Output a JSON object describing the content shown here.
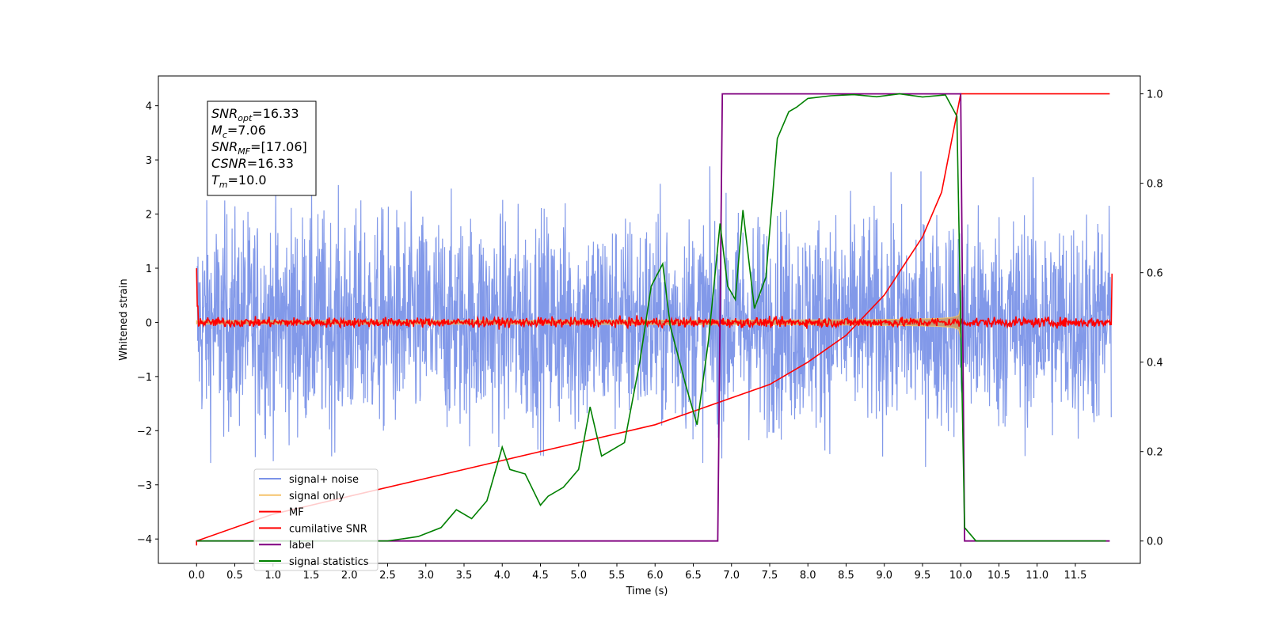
{
  "chart_data": {
    "type": "line",
    "xlabel": "Time (s)",
    "ylabel": "Whitened strain",
    "xlim": [
      -0.5,
      12.35
    ],
    "ylim": [
      -4.45,
      4.55
    ],
    "y2lim": [
      -0.05,
      1.04
    ],
    "xticks": [
      "0.0",
      "0.5",
      "1.0",
      "1.5",
      "2.0",
      "2.5",
      "3.0",
      "3.5",
      "4.0",
      "4.5",
      "5.0",
      "5.5",
      "6.0",
      "6.5",
      "7.0",
      "7.5",
      "8.0",
      "8.5",
      "9.0",
      "9.5",
      "10.0",
      "10.5",
      "11.0",
      "11.5"
    ],
    "yticks": [
      "−4",
      "−3",
      "−2",
      "−1",
      "0",
      "1",
      "2",
      "3",
      "4"
    ],
    "y2ticks": [
      "0.0",
      "0.2",
      "0.4",
      "0.6",
      "0.8",
      "1.0"
    ],
    "annotation": [
      {
        "sym": "SNR",
        "sub": "opt",
        "value": "=16.33"
      },
      {
        "sym": "M",
        "sub": "c",
        "value": "=7.06"
      },
      {
        "sym": "SNR",
        "sub": "MF",
        "value": "=[17.06]"
      },
      {
        "sym": "CSNR",
        "sub": "",
        "value": "=16.33"
      },
      {
        "sym": "T",
        "sub": "m",
        "value": "=10.0"
      }
    ],
    "series": [
      {
        "name": "signal+ noise",
        "color": "#7b93e8",
        "axis": "left",
        "description": "noise band",
        "spread": 1.0
      },
      {
        "name": "signal only",
        "color": "#f5c46c",
        "axis": "left",
        "envelope_at_merger": 1.1,
        "merger_time": 10.0
      },
      {
        "name": "MF",
        "color": "#ff0000",
        "axis": "left",
        "baseline": 0.0
      },
      {
        "name": "cumilative SNR",
        "color": "#ff0000",
        "axis": "right",
        "x": [
          0.0,
          1.0,
          2.0,
          3.0,
          4.0,
          5.0,
          6.0,
          6.5,
          7.0,
          7.5,
          8.0,
          8.5,
          9.0,
          9.5,
          9.75,
          10.0,
          11.95
        ],
        "y": [
          0.0,
          0.06,
          0.1,
          0.14,
          0.18,
          0.22,
          0.26,
          0.29,
          0.32,
          0.35,
          0.4,
          0.46,
          0.55,
          0.68,
          0.78,
          1.0,
          1.0
        ]
      },
      {
        "name": "label",
        "color": "#800080",
        "axis": "right",
        "x": [
          0.0,
          6.82,
          6.88,
          10.0,
          10.05,
          11.95
        ],
        "y": [
          0.0,
          0.0,
          1.0,
          1.0,
          0.0,
          0.0
        ]
      },
      {
        "name": "signal statistics",
        "color": "#008000",
        "axis": "right",
        "x": [
          0.0,
          0.5,
          1.0,
          1.5,
          2.0,
          2.5,
          2.9,
          3.2,
          3.4,
          3.6,
          3.8,
          4.0,
          4.1,
          4.3,
          4.5,
          4.6,
          4.8,
          5.0,
          5.15,
          5.3,
          5.6,
          5.8,
          5.95,
          6.1,
          6.2,
          6.4,
          6.55,
          6.7,
          6.85,
          6.95,
          7.05,
          7.15,
          7.3,
          7.45,
          7.6,
          7.75,
          7.85,
          8.0,
          8.3,
          8.6,
          8.9,
          9.2,
          9.5,
          9.8,
          9.95,
          10.05,
          10.2,
          11.0,
          11.9
        ],
        "y": [
          0.0,
          0.0,
          0.0,
          0.0,
          0.0,
          0.0,
          0.01,
          0.03,
          0.07,
          0.05,
          0.09,
          0.21,
          0.16,
          0.15,
          0.08,
          0.1,
          0.12,
          0.16,
          0.3,
          0.19,
          0.22,
          0.4,
          0.57,
          0.62,
          0.48,
          0.35,
          0.26,
          0.45,
          0.71,
          0.57,
          0.54,
          0.74,
          0.52,
          0.59,
          0.9,
          0.96,
          0.97,
          0.99,
          1.0,
          1.0,
          1.0,
          1.0,
          1.0,
          1.0,
          0.95,
          0.03,
          0.0,
          0.0,
          0.0
        ]
      }
    ],
    "legend_position": "lower-left",
    "grid": false
  }
}
